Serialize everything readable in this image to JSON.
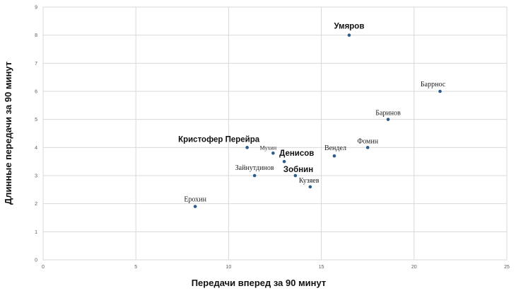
{
  "chart_data": {
    "type": "scatter",
    "title": "",
    "xlabel": "Передачи вперед за 90 минут",
    "ylabel": "Длинные передачи за 90 минут",
    "xlim": [
      0,
      25
    ],
    "ylim": [
      0,
      9
    ],
    "xticks": [
      0,
      5,
      10,
      15,
      20,
      25
    ],
    "yticks": [
      0,
      1,
      2,
      3,
      4,
      5,
      6,
      7,
      8,
      9
    ],
    "grid": true,
    "marker_color": "#2e5c8a",
    "points": [
      {
        "label": "Умяров",
        "x": 16.5,
        "y": 8.0,
        "emphasis": "bold"
      },
      {
        "label": "Баррнос",
        "x": 21.4,
        "y": 6.0,
        "emphasis": "normal"
      },
      {
        "label": "Баринов",
        "x": 18.6,
        "y": 5.0,
        "emphasis": "normal"
      },
      {
        "label": "Фомин",
        "x": 17.5,
        "y": 4.0,
        "emphasis": "normal"
      },
      {
        "label": "Вендел",
        "x": 15.7,
        "y": 3.7,
        "emphasis": "normal"
      },
      {
        "label": "Кристофер Перейра",
        "x": 11.0,
        "y": 4.0,
        "emphasis": "bold"
      },
      {
        "label": "Мухин",
        "x": 12.4,
        "y": 3.8,
        "emphasis": "small"
      },
      {
        "label": "Денисов",
        "x": 13.0,
        "y": 3.5,
        "emphasis": "bold"
      },
      {
        "label": "Зайнутдинов",
        "x": 11.4,
        "y": 3.0,
        "emphasis": "normal"
      },
      {
        "label": "Зобнин",
        "x": 13.6,
        "y": 3.0,
        "emphasis": "bold"
      },
      {
        "label": "Кузяев",
        "x": 14.4,
        "y": 2.6,
        "emphasis": "normal"
      },
      {
        "label": "Ерохин",
        "x": 8.2,
        "y": 1.9,
        "emphasis": "normal"
      }
    ]
  }
}
